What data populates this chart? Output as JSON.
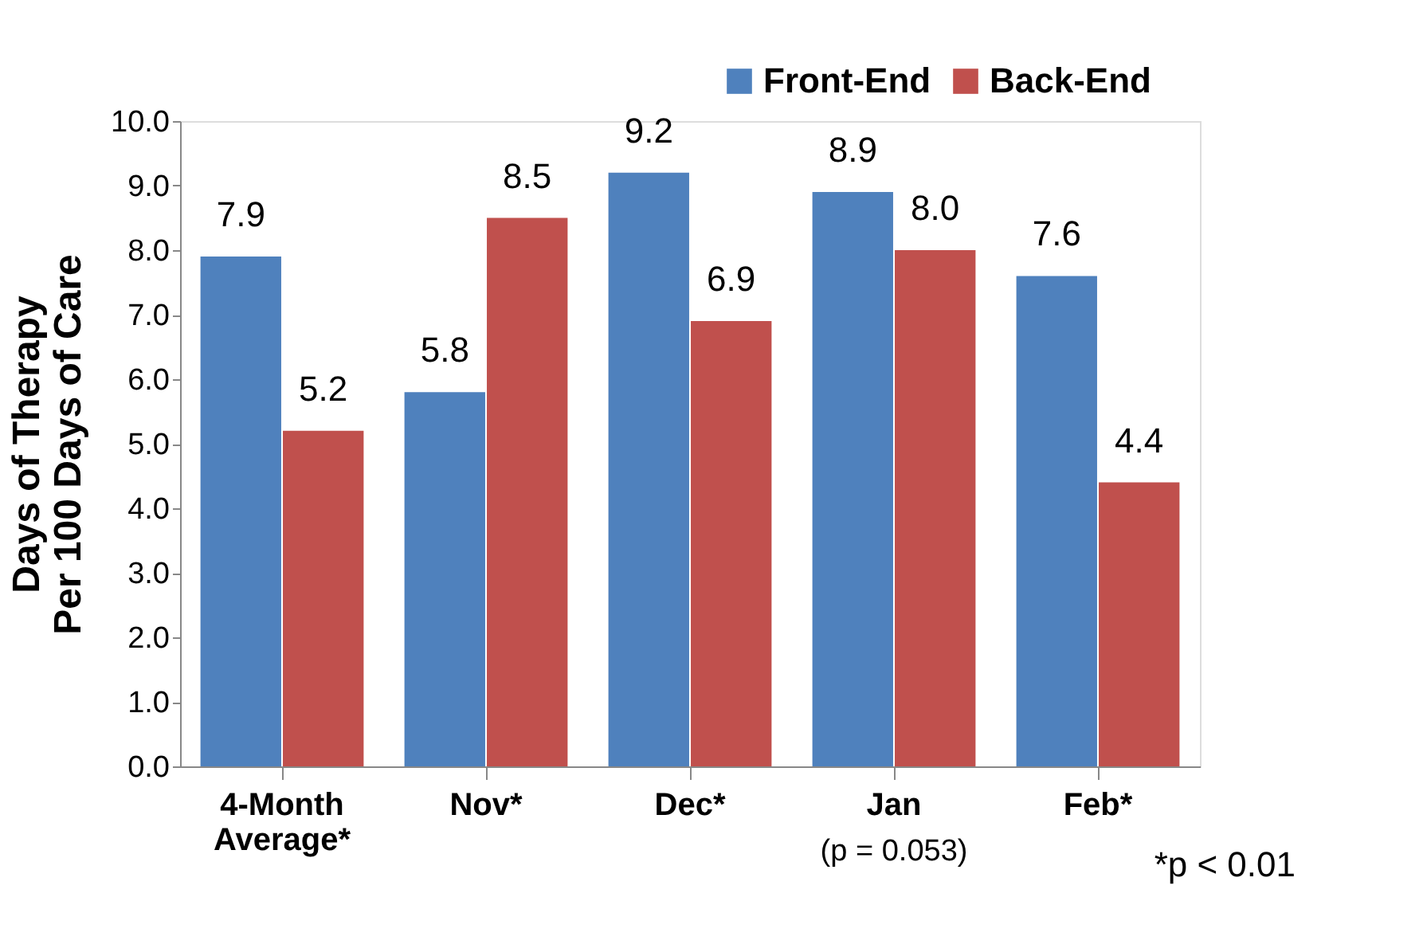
{
  "chart_data": {
    "type": "bar",
    "ylabel": "Days of Therapy\nPer 100 Days of Care",
    "categories": [
      "4-Month Average*",
      "Nov*",
      "Dec*",
      "Jan",
      "Feb*"
    ],
    "series": [
      {
        "name": "Front-End",
        "color": "#4f81bd",
        "values": [
          7.9,
          5.8,
          9.2,
          8.9,
          7.6
        ],
        "value_labels": [
          "7.9",
          "5.8",
          "9.2",
          "8.9",
          "7.6"
        ]
      },
      {
        "name": "Back-End",
        "color": "#c0504d",
        "values": [
          5.2,
          8.5,
          6.9,
          8.0,
          4.4
        ],
        "value_labels": [
          "5.2",
          "8.5",
          "6.9",
          "8.0",
          "4.4"
        ]
      }
    ],
    "ylim": [
      0,
      10
    ],
    "yticks": [
      {
        "value": 0,
        "label": "0.0"
      },
      {
        "value": 1,
        "label": "1.0"
      },
      {
        "value": 2,
        "label": "2.0"
      },
      {
        "value": 3,
        "label": "3.0"
      },
      {
        "value": 4,
        "label": "4.0"
      },
      {
        "value": 5,
        "label": "5.0"
      },
      {
        "value": 6,
        "label": "6.0"
      },
      {
        "value": 7,
        "label": "7.0"
      },
      {
        "value": 8,
        "label": "8.0"
      },
      {
        "value": 9,
        "label": "9.0"
      },
      {
        "value": 10,
        "label": "10.0"
      }
    ],
    "grid": false,
    "legend": "top right",
    "annotations": [
      "(p = 0.053)",
      "*p < 0.01"
    ]
  }
}
